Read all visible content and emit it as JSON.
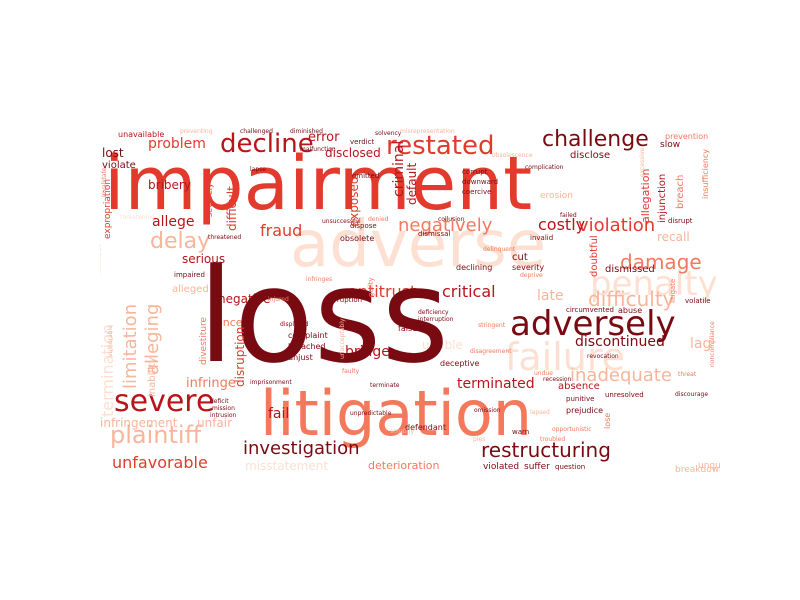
{
  "colors": {
    "background": "#ffffff",
    "darkest": "#7a0a12",
    "dark": "#b8151b",
    "red": "#e23a2c",
    "salmon": "#f4795c",
    "light": "#f8b59a",
    "palest": "#fde0d2"
  },
  "words": {
    "loss": "loss",
    "impairment": "impairment",
    "litigation": "litigation",
    "adverse": "adverse",
    "adversely": "adversely",
    "severe": "severe",
    "restated": "restated",
    "decline": "decline",
    "challenge": "challenge",
    "failure": "failure",
    "restructuring": "restructuring",
    "investigation": "investigation",
    "plaintiff": "plaintiff",
    "limitation": "limitation",
    "damage": "damage",
    "violation": "violation",
    "delay": "delay",
    "negatively": "negatively",
    "penalty": "penalty",
    "difficulty": "difficulty",
    "inadequate": "inadequate",
    "unfavorable": "unfavorable",
    "termination": "termination",
    "alleging": "alleging",
    "costly": "costly",
    "antitrust": "antitrust",
    "critical": "critical",
    "discontinued": "discontinued",
    "terminated": "terminated",
    "infringement": "infringement",
    "unfair": "unfair",
    "problem": "problem",
    "bribery": "bribery",
    "fraud": "fraud",
    "allege": "allege",
    "serious": "serious",
    "infringe": "infringe",
    "late": "late",
    "fail": "fail",
    "bridge": "bridge",
    "deterioration": "deterioration",
    "misstatement": "misstatement",
    "violated": "violated",
    "suffer": "suffer",
    "question": "question",
    "breakdown": "breakdown",
    "lag": "lag",
    "recall": "recall",
    "dismissed": "dismissed",
    "cut": "cut",
    "severity": "severity",
    "declining": "declining",
    "error": "error",
    "disclosed": "disclosed",
    "omitted": "omitted",
    "exposed": "exposed",
    "criminal": "criminal",
    "default": "default",
    "corrupt": "corrupt",
    "downward": "downward",
    "coercive": "coercive",
    "disclose": "disclose",
    "slow": "slow",
    "prevention": "prevention",
    "insufficiency": "insufficiency",
    "breach": "breach",
    "injunction": "injunction",
    "allegation": "allegation",
    "failed": "failed",
    "invalid": "invalid",
    "disrupt": "disrupt",
    "negative": "negative",
    "concern": "concern",
    "disruption": "disruption",
    "alleged": "alleged",
    "divestiture": "divestiture",
    "inability": "inability",
    "complaint": "complaint",
    "breached": "breached",
    "unjust": "unjust",
    "displaced": "displaced",
    "corruption": "corruption",
    "false": "false",
    "deficiency": "deficiency",
    "interruption": "interruption",
    "unable": "unable",
    "defendant": "defendant",
    "deceptive": "deceptive",
    "absence": "absence",
    "unresolved": "unresolved",
    "prejudice": "prejudice",
    "punitive": "punitive",
    "unqualified": "unqualified",
    "abuse": "abuse",
    "circumvented": "circumvented",
    "doubtful": "doubtful",
    "volatile": "volatile",
    "litigate": "litigate",
    "dismissal": "dismissal",
    "dispose": "dispose",
    "obsolete": "obsolete",
    "impaired": "impaired",
    "difficult": "difficult",
    "severely": "severely",
    "lapse": "lapse",
    "malfunction": "malfunction",
    "verdict": "verdict",
    "solvency": "solvency",
    "unavailable": "unavailable",
    "lost": "lost",
    "violate": "violate",
    "expropriation": "expropriation",
    "preventing": "preventing",
    "challenged": "challenged",
    "diminished": "diminished",
    "misrepresentation": "misrepresentation",
    "obsolescence": "obsolescence",
    "complication": "complication",
    "collusion": "collusion",
    "erosion": "erosion",
    "delinquent": "delinquent",
    "guilty": "guilty",
    "deprive": "deprive",
    "unsuccessful": "unsuccessful",
    "threatened": "threatened",
    "threatening": "threatening",
    "invalidate": "invalidate",
    "stringent": "stringent",
    "disagreement": "disagreement",
    "warn": "warn",
    "omission": "omission",
    "unpredictable": "unpredictable",
    "scrutiny": "scrutiny",
    "discourage": "discourage",
    "lose": "lose",
    "opportunistic": "opportunistic",
    "revocation": "revocation",
    "recession": "recession",
    "deficit": "deficit",
    "mission": "mission",
    "intrusion": "intrusion",
    "faulty": "faulty",
    "unacceptably": "unacceptably",
    "injured": "injured",
    "infringes": "infringes",
    "denied": "denied",
    "excessive": "excessive",
    "undue": "undue",
    "malicious": "malicious",
    "terminate": "terminate",
    "imprisonment": "imprisonment",
    "vulnerable": "vulnerable",
    "noncompliance": "noncompliance",
    "threat": "threat",
    "troubled": "troubled",
    "lapsed": "lapsed",
    "ples": "ples",
    "deprive2": "deprive",
    "quarantine": "quarantine"
  }
}
